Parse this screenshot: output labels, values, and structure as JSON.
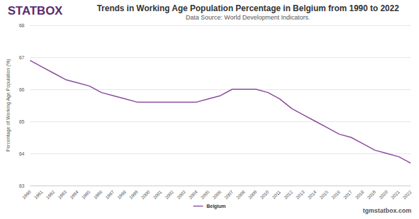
{
  "chart_data": {
    "type": "line",
    "logo": "STATBOX",
    "title": "Trends in Working Age Population Percentage in Belgium from 1990 to 2022",
    "subtitle": "Data Source: World Development Indicators.",
    "y_label": "Percentage of Working Age Population (%)",
    "footer": "tgmstatbox.com",
    "categories": [
      "1990",
      "1991",
      "1992",
      "1993",
      "1994",
      "1995",
      "1996",
      "1997",
      "1998",
      "1999",
      "2000",
      "2001",
      "2002",
      "2003",
      "2004",
      "2005",
      "2006",
      "2007",
      "2008",
      "2009",
      "2010",
      "2011",
      "2012",
      "2013",
      "2014",
      "2015",
      "2016",
      "2017",
      "2018",
      "2019",
      "2020",
      "2021",
      "2022"
    ],
    "series": [
      {
        "name": "Belgium",
        "color": "#8a4a9c",
        "values": [
          66.9,
          66.7,
          66.5,
          66.3,
          66.2,
          66.1,
          65.9,
          65.8,
          65.7,
          65.6,
          65.6,
          65.6,
          65.6,
          65.6,
          65.6,
          65.7,
          65.8,
          66.0,
          66.0,
          66.0,
          65.9,
          65.7,
          65.4,
          65.2,
          65.0,
          64.8,
          64.6,
          64.5,
          64.3,
          64.1,
          64.0,
          63.9,
          63.7
        ]
      }
    ],
    "ylim": [
      63,
      68
    ],
    "yticks": [
      63,
      64,
      65,
      66,
      67,
      68
    ],
    "grid": true,
    "legend": "bottom"
  }
}
